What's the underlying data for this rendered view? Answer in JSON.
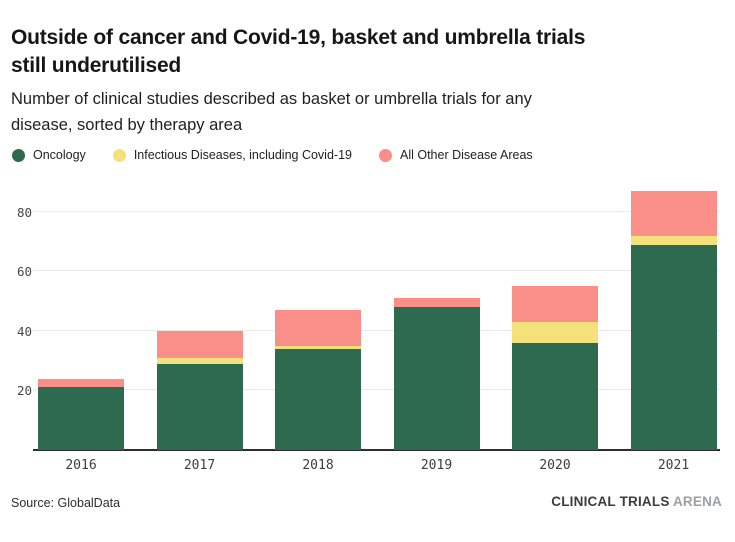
{
  "header": {
    "title_line1": "Outside of cancer and Covid-19, basket and umbrella trials",
    "title_line2": "still underutilised",
    "subtitle_line1": "Number of clinical studies described as basket or umbrella trials for any",
    "subtitle_line2": "disease, sorted by therapy area"
  },
  "legend": {
    "items": [
      {
        "label": "Oncology",
        "color": "#2d6a4f"
      },
      {
        "label": "Infectious Diseases, including Covid-19",
        "color": "#f5e17b"
      },
      {
        "label": "All Other Disease Areas",
        "color": "#f98f88"
      }
    ]
  },
  "chart_data": {
    "type": "bar",
    "stacked": true,
    "title": "Outside of cancer and Covid-19, basket and umbrella trials still underutilised",
    "subtitle": "Number of clinical studies described as basket or umbrella trials for any disease, sorted by therapy area",
    "categories": [
      "2016",
      "2017",
      "2018",
      "2019",
      "2020",
      "2021"
    ],
    "series": [
      {
        "name": "Oncology",
        "color": "#2d6a4f",
        "values": [
          21,
          29,
          34,
          48,
          36,
          69
        ]
      },
      {
        "name": "Infectious Diseases, including Covid-19",
        "color": "#f5e17b",
        "values": [
          0,
          2,
          1,
          0,
          7,
          3
        ]
      },
      {
        "name": "All Other Disease Areas",
        "color": "#f98f88",
        "values": [
          3,
          9,
          12,
          3,
          12,
          15
        ]
      }
    ],
    "totals": [
      24,
      40,
      47,
      51,
      55,
      87
    ],
    "xlabel": "",
    "ylabel": "",
    "ylim": [
      0,
      89
    ],
    "yticks": [
      20,
      40,
      60,
      80
    ],
    "grid": true,
    "legend_position": "top"
  },
  "footer": {
    "source": "Source: GlobalData",
    "brand_primary": "CLINICAL TRIALS",
    "brand_secondary": "ARENA"
  }
}
